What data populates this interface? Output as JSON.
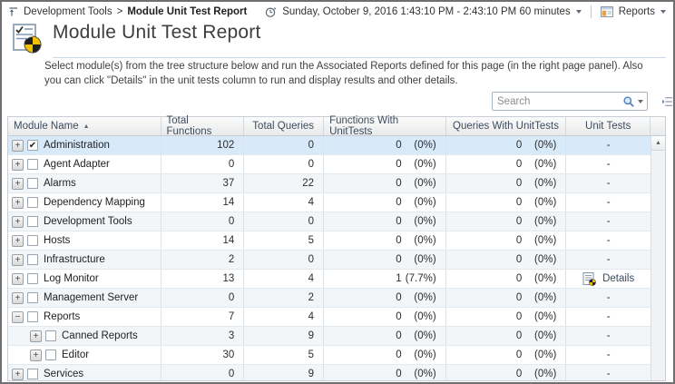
{
  "topbar": {
    "breadcrumb": {
      "parent": "Development Tools",
      "separator": ">",
      "current": "Module Unit Test Report"
    },
    "time_range": "Sunday, October 9, 2016 1:43:10 PM - 2:43:10 PM 60 minutes",
    "reports_label": "Reports"
  },
  "page": {
    "title": "Module Unit Test Report",
    "description": "Select module(s) from the tree structure below and run the Associated Reports defined for this page (in the right page panel). Also you can click \"Details\" in the unit tests column to run and display results and other details."
  },
  "search": {
    "placeholder": "Search"
  },
  "table": {
    "columns": [
      "Module Name",
      "Total Functions",
      "Total Queries",
      "Functions With UnitTests",
      "Queries With UnitTests",
      "Unit Tests"
    ],
    "sort": {
      "column": "Module Name",
      "direction": "ascending",
      "arrow": "▲"
    },
    "rows": [
      {
        "name": "Administration",
        "level": 0,
        "expander": "plus",
        "checked": true,
        "selected": true,
        "total_functions": "102",
        "total_queries": "0",
        "func_ut_count": "0",
        "func_ut_pct": "(0%)",
        "query_ut_count": "0",
        "query_ut_pct": "(0%)",
        "unit_tests": "-"
      },
      {
        "name": "Agent Adapter",
        "level": 0,
        "expander": "plus",
        "checked": false,
        "selected": false,
        "total_functions": "0",
        "total_queries": "0",
        "func_ut_count": "0",
        "func_ut_pct": "(0%)",
        "query_ut_count": "0",
        "query_ut_pct": "(0%)",
        "unit_tests": "-"
      },
      {
        "name": "Alarms",
        "level": 0,
        "expander": "plus",
        "checked": false,
        "selected": false,
        "total_functions": "37",
        "total_queries": "22",
        "func_ut_count": "0",
        "func_ut_pct": "(0%)",
        "query_ut_count": "0",
        "query_ut_pct": "(0%)",
        "unit_tests": "-"
      },
      {
        "name": "Dependency Mapping",
        "level": 0,
        "expander": "plus",
        "checked": false,
        "selected": false,
        "total_functions": "14",
        "total_queries": "4",
        "func_ut_count": "0",
        "func_ut_pct": "(0%)",
        "query_ut_count": "0",
        "query_ut_pct": "(0%)",
        "unit_tests": "-"
      },
      {
        "name": "Development Tools",
        "level": 0,
        "expander": "plus",
        "checked": false,
        "selected": false,
        "total_functions": "0",
        "total_queries": "0",
        "func_ut_count": "0",
        "func_ut_pct": "(0%)",
        "query_ut_count": "0",
        "query_ut_pct": "(0%)",
        "unit_tests": "-"
      },
      {
        "name": "Hosts",
        "level": 0,
        "expander": "plus",
        "checked": false,
        "selected": false,
        "total_functions": "14",
        "total_queries": "5",
        "func_ut_count": "0",
        "func_ut_pct": "(0%)",
        "query_ut_count": "0",
        "query_ut_pct": "(0%)",
        "unit_tests": "-"
      },
      {
        "name": "Infrastructure",
        "level": 0,
        "expander": "plus",
        "checked": false,
        "selected": false,
        "total_functions": "2",
        "total_queries": "0",
        "func_ut_count": "0",
        "func_ut_pct": "(0%)",
        "query_ut_count": "0",
        "query_ut_pct": "(0%)",
        "unit_tests": "-"
      },
      {
        "name": "Log Monitor",
        "level": 0,
        "expander": "plus",
        "checked": false,
        "selected": false,
        "total_functions": "13",
        "total_queries": "4",
        "func_ut_count": "1",
        "func_ut_pct": "(7.7%)",
        "query_ut_count": "0",
        "query_ut_pct": "(0%)",
        "unit_tests": "Details",
        "details": true
      },
      {
        "name": "Management Server",
        "level": 0,
        "expander": "plus",
        "checked": false,
        "selected": false,
        "total_functions": "0",
        "total_queries": "2",
        "func_ut_count": "0",
        "func_ut_pct": "(0%)",
        "query_ut_count": "0",
        "query_ut_pct": "(0%)",
        "unit_tests": "-"
      },
      {
        "name": "Reports",
        "level": 0,
        "expander": "minus",
        "checked": false,
        "selected": false,
        "total_functions": "7",
        "total_queries": "4",
        "func_ut_count": "0",
        "func_ut_pct": "(0%)",
        "query_ut_count": "0",
        "query_ut_pct": "(0%)",
        "unit_tests": "-"
      },
      {
        "name": "Canned Reports",
        "level": 1,
        "expander": "plus",
        "checked": false,
        "selected": false,
        "total_functions": "3",
        "total_queries": "9",
        "func_ut_count": "0",
        "func_ut_pct": "(0%)",
        "query_ut_count": "0",
        "query_ut_pct": "(0%)",
        "unit_tests": "-"
      },
      {
        "name": "Editor",
        "level": 1,
        "expander": "plus",
        "checked": false,
        "selected": false,
        "total_functions": "30",
        "total_queries": "5",
        "func_ut_count": "0",
        "func_ut_pct": "(0%)",
        "query_ut_count": "0",
        "query_ut_pct": "(0%)",
        "unit_tests": "-"
      },
      {
        "name": "Services",
        "level": 0,
        "expander": "plus",
        "checked": false,
        "selected": false,
        "total_functions": "0",
        "total_queries": "9",
        "func_ut_count": "0",
        "func_ut_pct": "(0%)",
        "query_ut_count": "0",
        "query_ut_pct": "(0%)",
        "unit_tests": "-"
      }
    ]
  },
  "icons": {
    "breadcrumb_up": "navigate-up-icon",
    "time": "clock-icon",
    "reports": "report-window-icon",
    "page": "unit-test-report-icon",
    "search": "magnifier-icon",
    "details": "details-report-icon",
    "column_chooser": "column-chooser-icon"
  },
  "colors": {
    "selected_row": "#d8e9fa",
    "alt_row": "#f2f6f9",
    "header_text": "#3e4c5d",
    "details_link": "#3a4a5f",
    "pie_yellow": "#f2c200",
    "pie_black": "#1f1f1f",
    "outer_border": "#6f6f6f"
  }
}
